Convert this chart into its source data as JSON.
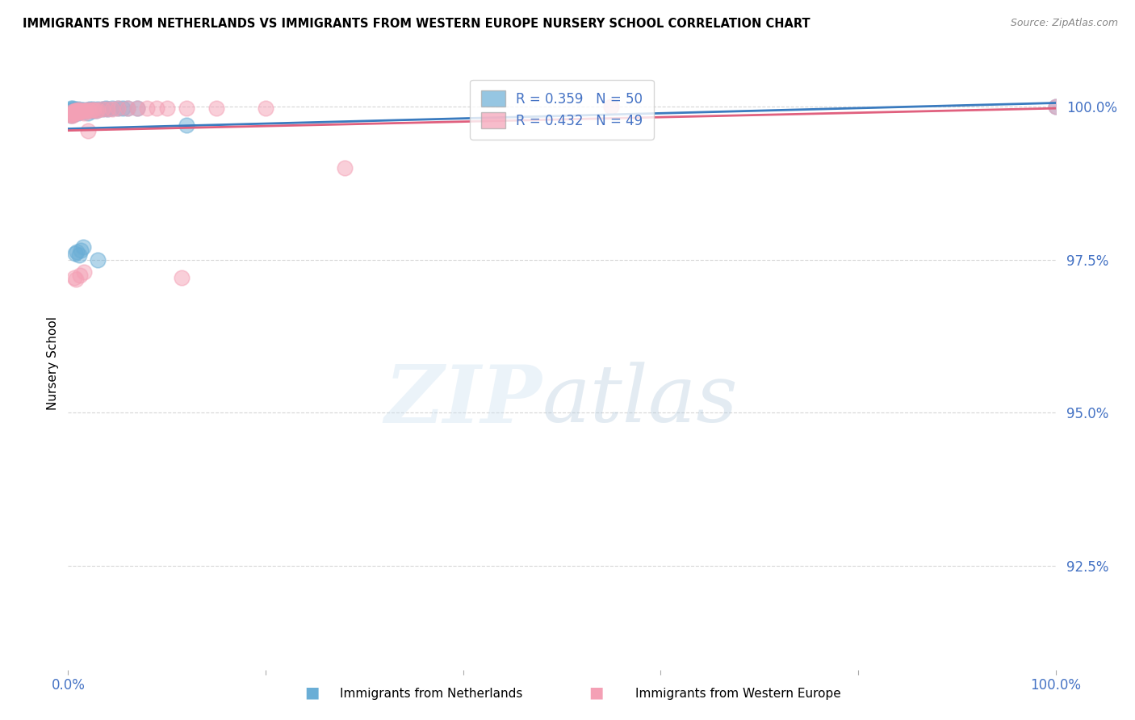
{
  "title": "IMMIGRANTS FROM NETHERLANDS VS IMMIGRANTS FROM WESTERN EUROPE NURSERY SCHOOL CORRELATION CHART",
  "source": "Source: ZipAtlas.com",
  "ylabel": "Nursery School",
  "ytick_labels": [
    "92.5%",
    "95.0%",
    "97.5%",
    "100.0%"
  ],
  "yticks": [
    0.925,
    0.95,
    0.975,
    1.0
  ],
  "ylim": [
    0.908,
    1.008
  ],
  "xlim": [
    0.0,
    1.0
  ],
  "legend_R_blue": "R = 0.359",
  "legend_N_blue": "N = 50",
  "legend_R_pink": "R = 0.432",
  "legend_N_pink": "N = 49",
  "color_blue": "#6aaed6",
  "color_pink": "#f4a0b5",
  "line_blue": "#3a7bbf",
  "line_pink": "#e0607e",
  "blue_x": [
    0.001,
    0.002,
    0.002,
    0.003,
    0.003,
    0.003,
    0.004,
    0.004,
    0.005,
    0.005,
    0.005,
    0.006,
    0.006,
    0.007,
    0.007,
    0.008,
    0.008,
    0.009,
    0.01,
    0.01,
    0.011,
    0.012,
    0.013,
    0.014,
    0.015,
    0.016,
    0.018,
    0.02,
    0.022,
    0.025,
    0.028,
    0.03,
    0.035,
    0.038,
    0.04,
    0.045,
    0.05,
    0.055,
    0.06,
    0.07,
    0.007,
    0.009,
    0.011,
    0.013,
    0.015,
    0.02,
    0.025,
    0.03,
    0.12,
    1.0
  ],
  "blue_y": [
    0.999,
    0.9988,
    0.9995,
    0.9985,
    0.9992,
    0.9998,
    0.999,
    0.9994,
    0.9987,
    0.9993,
    0.9998,
    0.9989,
    0.9995,
    0.9991,
    0.9996,
    0.999,
    0.9994,
    0.9992,
    0.999,
    0.9996,
    0.9993,
    0.9994,
    0.9992,
    0.9995,
    0.9993,
    0.9995,
    0.9994,
    0.9995,
    0.9996,
    0.9996,
    0.9994,
    0.9996,
    0.9996,
    0.9997,
    0.9996,
    0.9997,
    0.9997,
    0.9997,
    0.9997,
    0.9998,
    0.976,
    0.9762,
    0.9758,
    0.9765,
    0.977,
    0.999,
    0.9994,
    0.975,
    0.997,
    1.0
  ],
  "pink_x": [
    0.002,
    0.003,
    0.004,
    0.004,
    0.005,
    0.005,
    0.006,
    0.006,
    0.007,
    0.008,
    0.008,
    0.009,
    0.01,
    0.01,
    0.011,
    0.012,
    0.013,
    0.014,
    0.015,
    0.016,
    0.017,
    0.018,
    0.02,
    0.022,
    0.024,
    0.026,
    0.028,
    0.03,
    0.035,
    0.04,
    0.045,
    0.05,
    0.06,
    0.07,
    0.08,
    0.09,
    0.1,
    0.12,
    0.15,
    0.2,
    0.006,
    0.008,
    0.012,
    0.016,
    0.02,
    0.115,
    0.28,
    0.55,
    1.0
  ],
  "pink_y": [
    0.9987,
    0.9985,
    0.999,
    0.9988,
    0.9992,
    0.9986,
    0.9991,
    0.9989,
    0.9993,
    0.999,
    0.9994,
    0.9992,
    0.9991,
    0.9995,
    0.9993,
    0.9991,
    0.9992,
    0.9994,
    0.9993,
    0.999,
    0.9993,
    0.9994,
    0.9995,
    0.9994,
    0.9995,
    0.9995,
    0.9993,
    0.9995,
    0.9996,
    0.9996,
    0.9996,
    0.9997,
    0.9997,
    0.9997,
    0.9997,
    0.9998,
    0.9998,
    0.9997,
    0.9997,
    0.9998,
    0.972,
    0.9718,
    0.9725,
    0.973,
    0.996,
    0.972,
    0.99,
    1.0,
    1.0
  ],
  "watermark_zip": "ZIP",
  "watermark_atlas": "atlas",
  "background_color": "#ffffff",
  "grid_color": "#cccccc",
  "tick_color": "#4472c4",
  "bottom_label_blue": "Immigrants from Netherlands",
  "bottom_label_pink": "Immigrants from Western Europe"
}
